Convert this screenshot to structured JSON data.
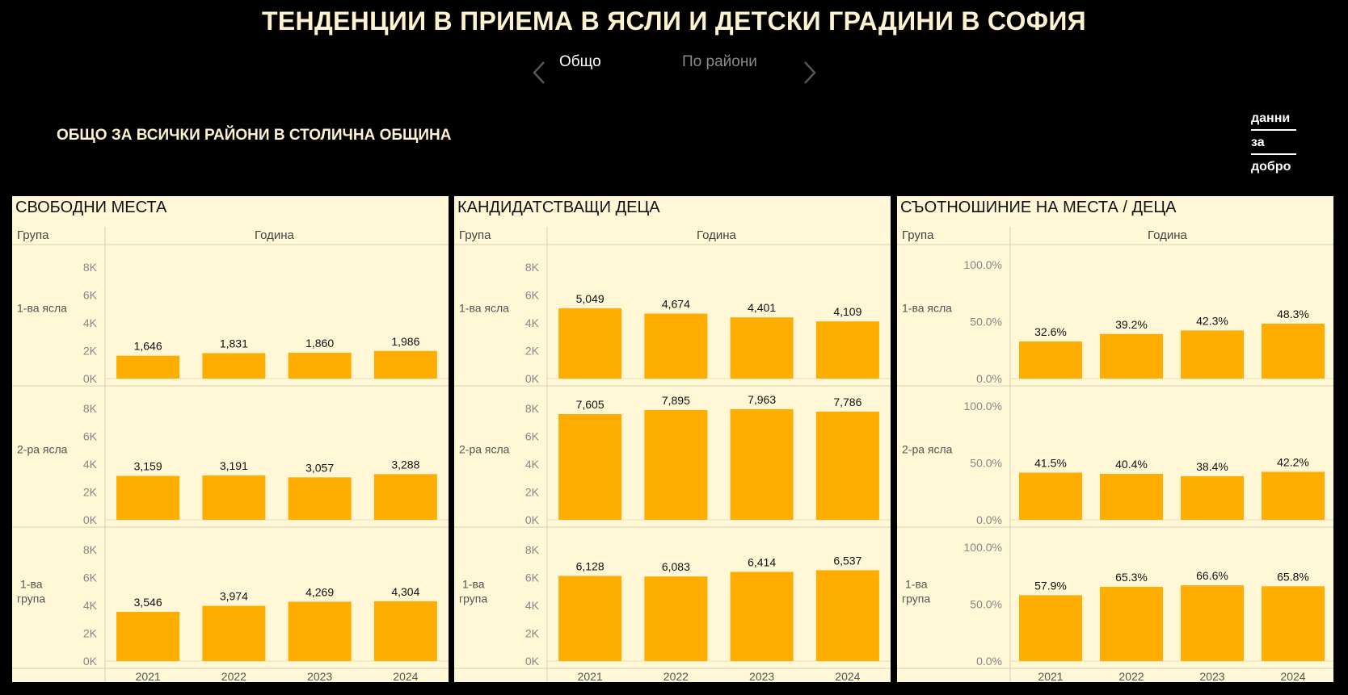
{
  "header": {
    "title": "ТЕНДЕНЦИИ В ПРИЕМА В ЯСЛИ И ДЕТСКИ ГРАДИНИ В СОФИЯ",
    "tabs": [
      {
        "label": "Общо",
        "active": true
      },
      {
        "label": "По райони",
        "active": false
      }
    ],
    "subtitle": "ОБЩО ЗА ВСИЧКИ РАЙОНИ В СТОЛИЧНА ОБЩИНА",
    "logo_lines": [
      "данни",
      "за",
      "добро"
    ]
  },
  "colors": {
    "background": "#000000",
    "panel": "#fff7d6",
    "bar": "#ffad00",
    "title": "#fff3cf"
  },
  "icons": {
    "prev": "chevron-left-icon",
    "next": "chevron-right-icon"
  },
  "chart_data": [
    {
      "type": "bar",
      "title": "СВОБОДНИ МЕСТА",
      "row_header": "Група",
      "col_header": "Година",
      "categories": [
        "2021",
        "2022",
        "2023",
        "2024"
      ],
      "ylim": [
        0,
        9000
      ],
      "y_ticks": [
        "8K",
        "6K",
        "4K",
        "2K",
        "0K"
      ],
      "y_tick_values": [
        8000,
        6000,
        4000,
        2000,
        0
      ],
      "groups": [
        {
          "name": "1-ва ясла",
          "values": [
            1646,
            1831,
            1860,
            1986
          ],
          "labels": [
            "1,646",
            "1,831",
            "1,860",
            "1,986"
          ]
        },
        {
          "name": "2-ра ясла",
          "values": [
            3159,
            3191,
            3057,
            3288
          ],
          "labels": [
            "3,159",
            "3,191",
            "3,057",
            "3,288"
          ]
        },
        {
          "name": "1-ва група",
          "values": [
            3546,
            3974,
            4269,
            4304
          ],
          "labels": [
            "3,546",
            "3,974",
            "4,269",
            "4,304"
          ]
        }
      ]
    },
    {
      "type": "bar",
      "title": "КАНДИДАТСТВАЩИ ДЕЦА",
      "row_header": "Група",
      "col_header": "Година",
      "categories": [
        "2021",
        "2022",
        "2023",
        "2024"
      ],
      "ylim": [
        0,
        9000
      ],
      "y_ticks": [
        "8K",
        "6K",
        "4K",
        "2K",
        "0K"
      ],
      "y_tick_values": [
        8000,
        6000,
        4000,
        2000,
        0
      ],
      "groups": [
        {
          "name": "1-ва ясла",
          "values": [
            5049,
            4674,
            4401,
            4109
          ],
          "labels": [
            "5,049",
            "4,674",
            "4,401",
            "4,109"
          ]
        },
        {
          "name": "2-ра ясла",
          "values": [
            7605,
            7895,
            7963,
            7786
          ],
          "labels": [
            "7,605",
            "7,895",
            "7,963",
            "7,786"
          ]
        },
        {
          "name": "1-ва група",
          "values": [
            6128,
            6083,
            6414,
            6537
          ],
          "labels": [
            "6,128",
            "6,083",
            "6,414",
            "6,537"
          ]
        }
      ]
    },
    {
      "type": "bar",
      "title": "СЪОТНОШИНИЕ НА МЕСТА / ДЕЦА",
      "row_header": "Група",
      "col_header": "Година",
      "categories": [
        "2021",
        "2022",
        "2023",
        "2024"
      ],
      "ylim": [
        0,
        110
      ],
      "y_ticks": [
        "100.0%",
        "50.0%",
        "0.0%"
      ],
      "y_tick_values": [
        100,
        50,
        0
      ],
      "groups": [
        {
          "name": "1-ва ясла",
          "values": [
            32.6,
            39.2,
            42.3,
            48.3
          ],
          "labels": [
            "32.6%",
            "39.2%",
            "42.3%",
            "48.3%"
          ]
        },
        {
          "name": "2-ра ясла",
          "values": [
            41.5,
            40.4,
            38.4,
            42.2
          ],
          "labels": [
            "41.5%",
            "40.4%",
            "38.4%",
            "42.2%"
          ]
        },
        {
          "name": "1-ва група",
          "values": [
            57.9,
            65.3,
            66.6,
            65.8
          ],
          "labels": [
            "57.9%",
            "65.3%",
            "66.6%",
            "65.8%"
          ]
        }
      ]
    }
  ]
}
